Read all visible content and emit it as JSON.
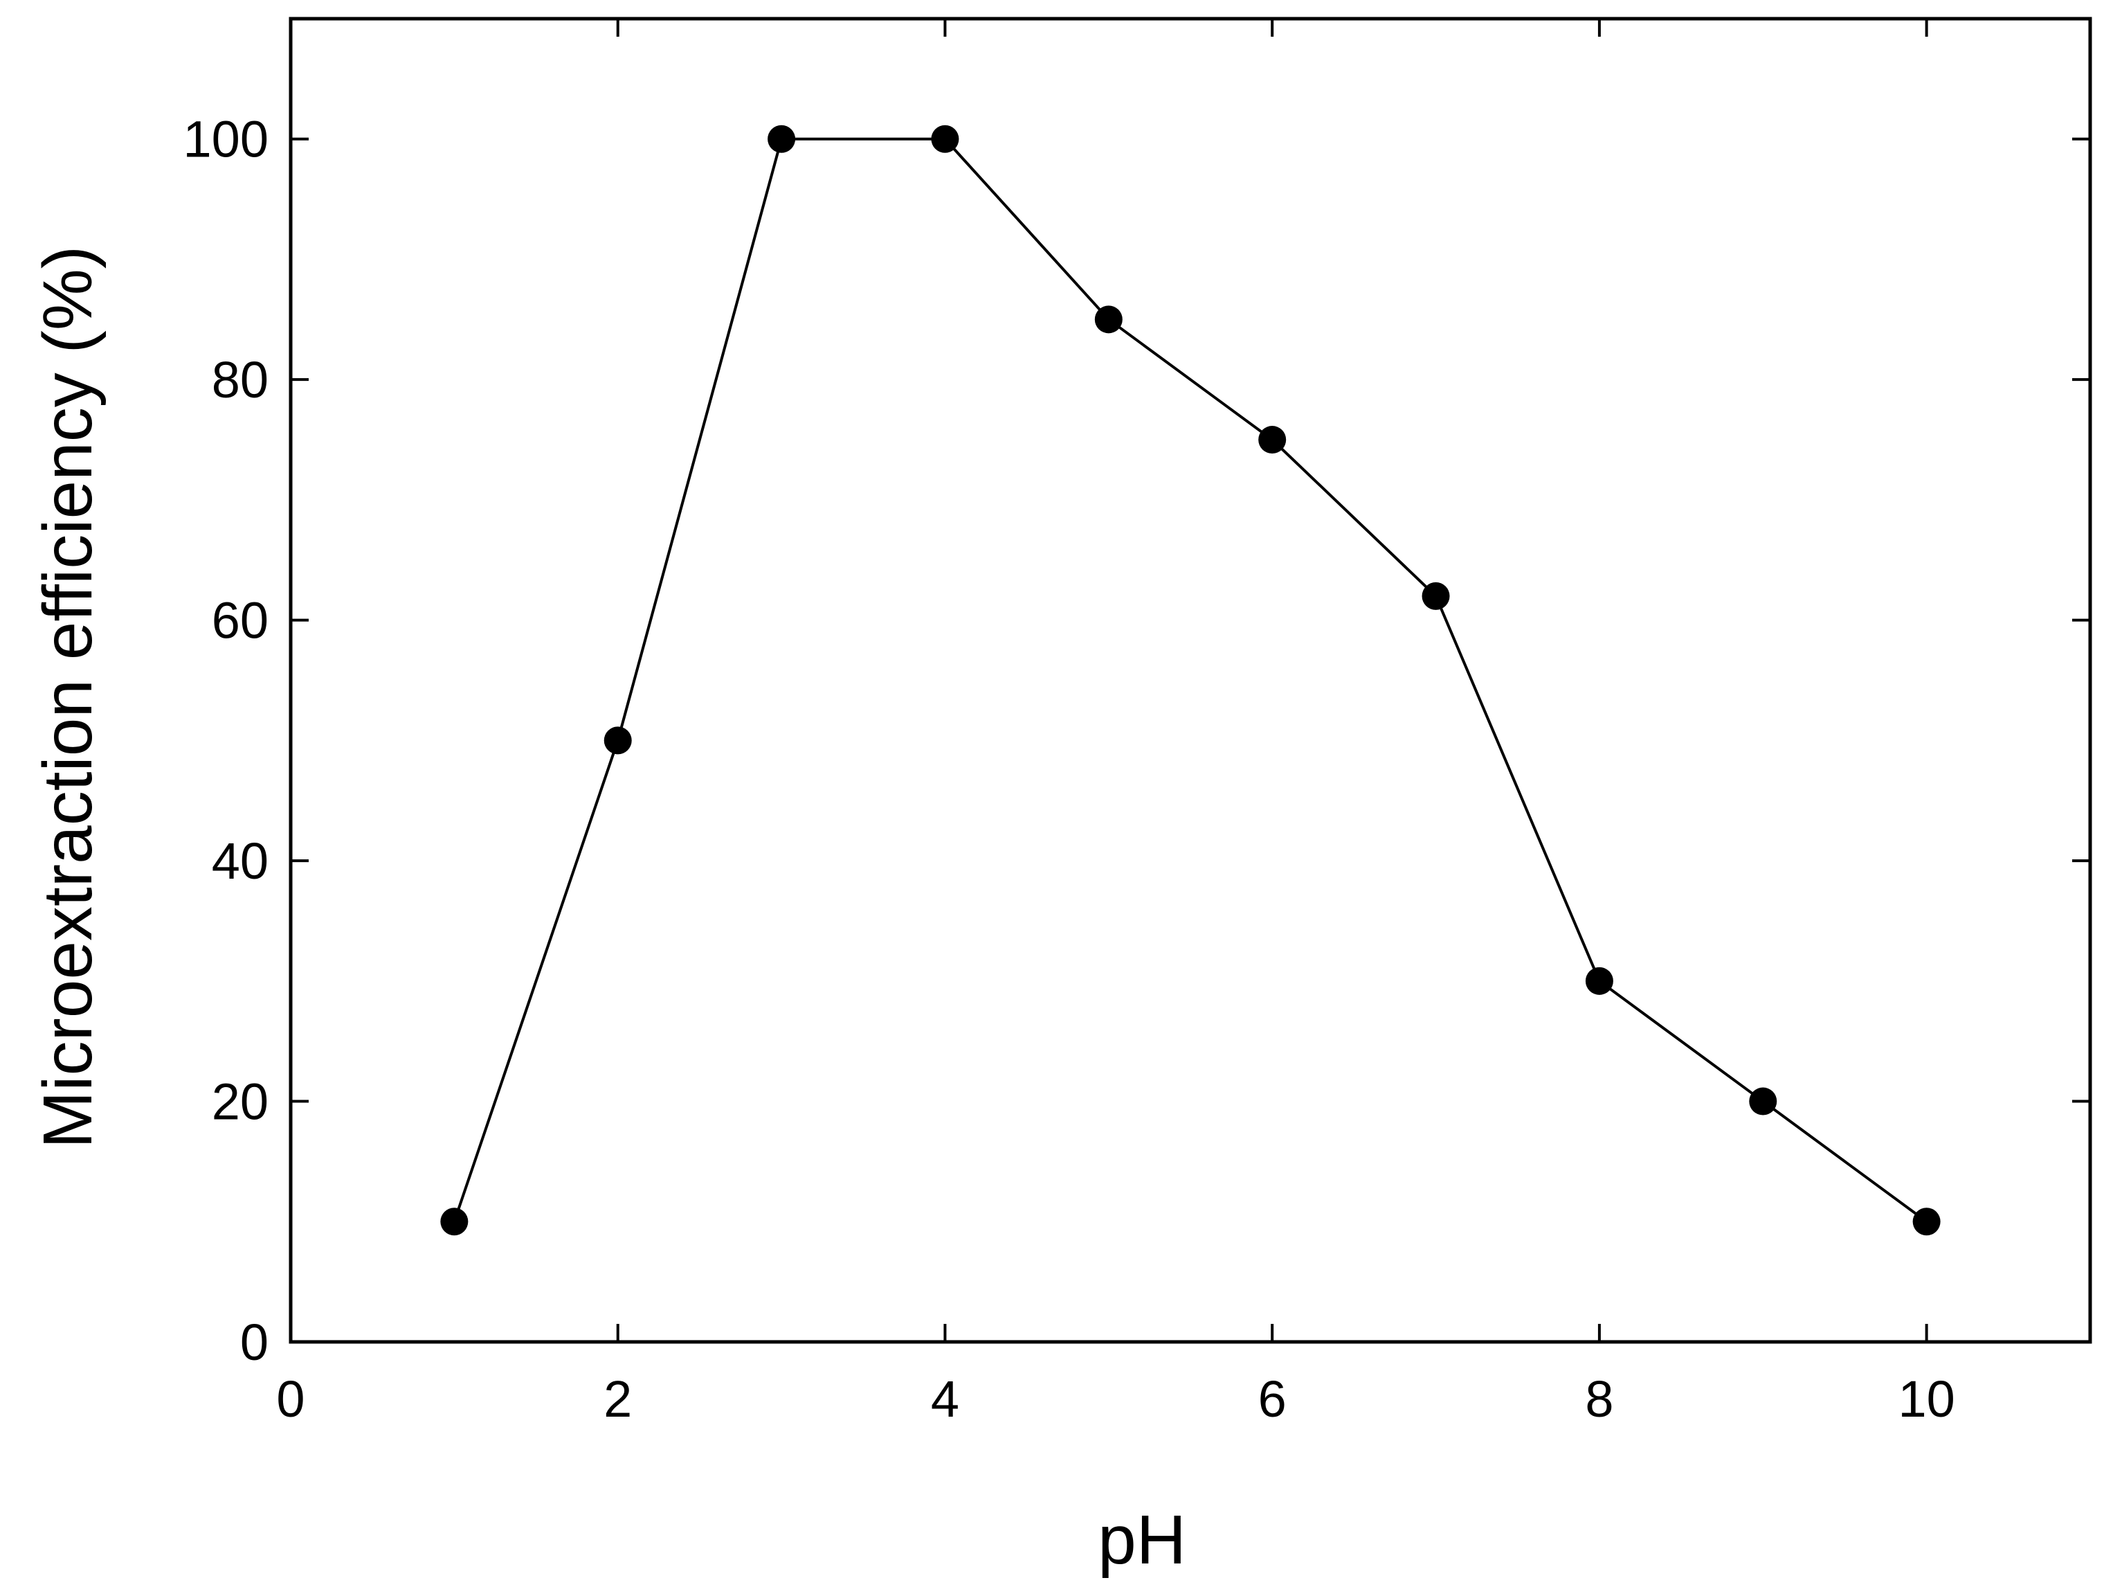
{
  "chart_data": {
    "type": "line",
    "title": "",
    "xlabel": "pH",
    "ylabel": "Microextraction efficiency (%)",
    "xlim": [
      0,
      11
    ],
    "ylim": [
      0,
      110
    ],
    "xticks": [
      0,
      2,
      4,
      6,
      8,
      10
    ],
    "yticks": [
      0,
      20,
      40,
      60,
      80,
      100
    ],
    "grid": false,
    "legend": "none",
    "series": [
      {
        "marker": "filled-circle",
        "color": "#000000",
        "x": [
          1,
          2,
          3,
          4,
          5,
          6,
          7,
          8,
          9,
          10
        ],
        "y": [
          10,
          50,
          100,
          100,
          85,
          75,
          62,
          30,
          20,
          10
        ]
      }
    ]
  }
}
